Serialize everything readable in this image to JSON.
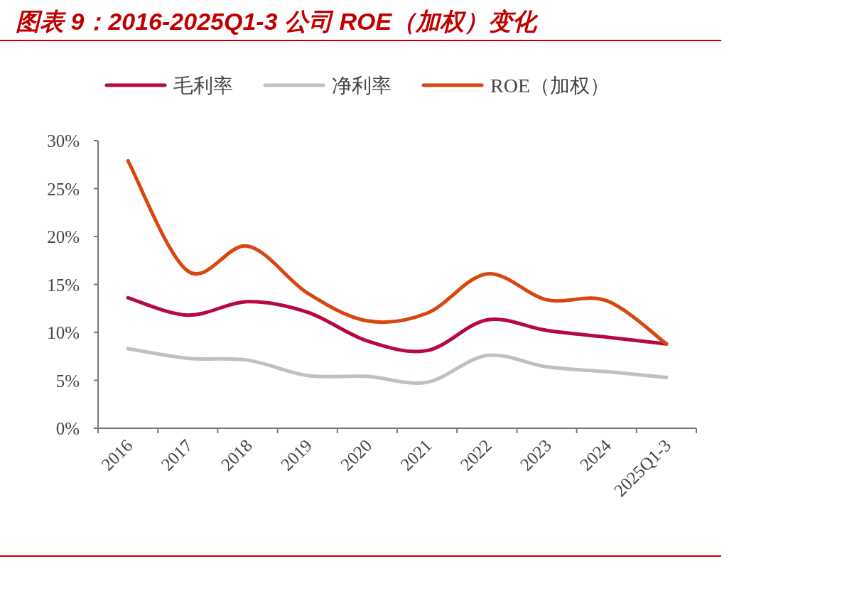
{
  "chart_data": {
    "type": "line",
    "title": "图表 9：2016-2025Q1-3 公司 ROE（加权）变化",
    "categories": [
      "2016",
      "2017",
      "2018",
      "2019",
      "2020",
      "2021",
      "2022",
      "2023",
      "2024",
      "2025Q1-3"
    ],
    "series": [
      {
        "name": "毛利率",
        "color": "#b5093f",
        "values": [
          13.6,
          11.8,
          13.2,
          12.1,
          9.1,
          8.1,
          11.3,
          10.2,
          9.5,
          8.8
        ]
      },
      {
        "name": "净利率",
        "color": "#c0c0c0",
        "values": [
          8.3,
          7.3,
          7.1,
          5.5,
          5.4,
          4.8,
          7.6,
          6.4,
          5.9,
          5.3
        ]
      },
      {
        "name": "ROE（加权）",
        "color": "#d7470f",
        "values": [
          27.9,
          16.4,
          19.0,
          14.1,
          11.2,
          12.0,
          16.1,
          13.4,
          13.3,
          8.8
        ]
      }
    ],
    "ylim": [
      0,
      30
    ],
    "yticks": [
      {
        "value": 0,
        "label": "0%"
      },
      {
        "value": 5,
        "label": "5%"
      },
      {
        "value": 10,
        "label": "10%"
      },
      {
        "value": 15,
        "label": "15%"
      },
      {
        "value": 20,
        "label": "20%"
      },
      {
        "value": 25,
        "label": "25%"
      },
      {
        "value": 30,
        "label": "30%"
      }
    ],
    "legend": "top",
    "grid": false,
    "marker": "none",
    "line_style": "solid"
  }
}
